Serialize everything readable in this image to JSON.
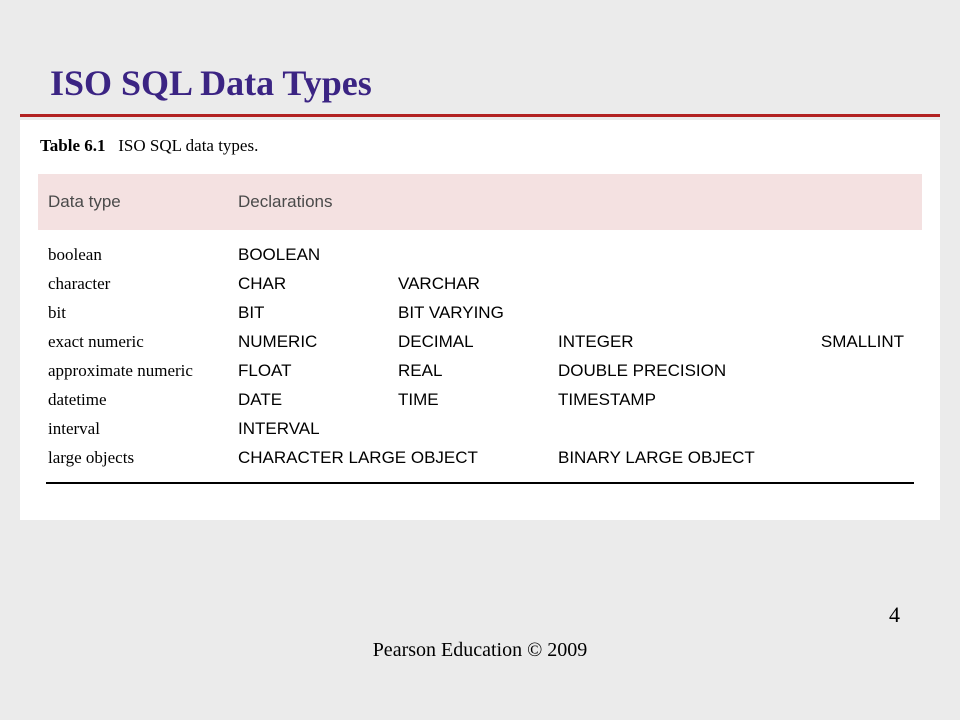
{
  "slide": {
    "title": "ISO SQL Data Types",
    "footer": "Pearson Education © 2009",
    "page_number": "4",
    "colors": {
      "background": "#ebebeb",
      "panel_bg": "#ffffff",
      "title_color": "#3b2483",
      "rule_color": "#b22222",
      "header_band_bg": "#f4e1e1",
      "header_text": "#4a4a4a"
    }
  },
  "table": {
    "caption_label": "Table 6.1",
    "caption_text": "ISO SQL data types.",
    "columns": [
      "Data type",
      "Declarations"
    ],
    "rows": [
      {
        "type": "boolean",
        "d1": "BOOLEAN",
        "d2": "",
        "d3": "",
        "d4": ""
      },
      {
        "type": "character",
        "d1": "CHAR",
        "d2": "VARCHAR",
        "d3": "",
        "d4": ""
      },
      {
        "type": "bit",
        "d1": "BIT",
        "d2": "BIT VARYING",
        "d3": "",
        "d4": ""
      },
      {
        "type": "exact numeric",
        "d1": "NUMERIC",
        "d2": "DECIMAL",
        "d3": "INTEGER",
        "d4": "SMALLINT"
      },
      {
        "type": "approximate numeric",
        "d1": "FLOAT",
        "d2": "REAL",
        "d3": "DOUBLE PRECISION",
        "d4": ""
      },
      {
        "type": "datetime",
        "d1": "DATE",
        "d2": "TIME",
        "d3": "TIMESTAMP",
        "d4": ""
      },
      {
        "type": "interval",
        "d1": "INTERVAL",
        "d2": "",
        "d3": "",
        "d4": ""
      }
    ],
    "last_row": {
      "type": "large objects",
      "d1": "CHARACTER LARGE OBJECT",
      "d3": "BINARY LARGE OBJECT"
    }
  }
}
